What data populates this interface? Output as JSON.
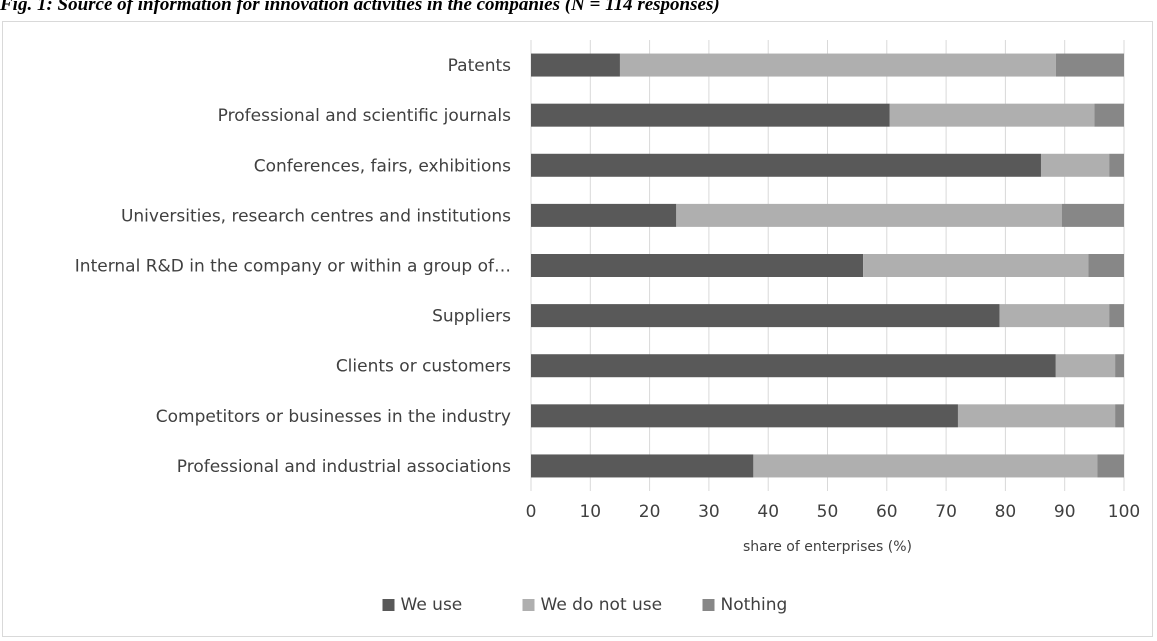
{
  "figure": {
    "title": "Fig. 1: Source of information for innovation activities in the companies (N = 114 responses)"
  },
  "chart_data": {
    "type": "bar",
    "orientation": "horizontal",
    "stacked": true,
    "categories": [
      "Patents",
      "Professional and scientific journals",
      "Conferences, fairs, exhibitions",
      "Universities, research centres and institutions",
      "Internal R&D in the company or within a group of…",
      "Suppliers",
      "Clients or customers",
      "Competitors or businesses in the industry",
      "Professional and industrial associations"
    ],
    "series": [
      {
        "name": "We use",
        "color": "#595959",
        "values": [
          15,
          60.5,
          86,
          24.5,
          56,
          79,
          88.5,
          72,
          37.5
        ]
      },
      {
        "name": "We do not use",
        "color": "#afafaf",
        "values": [
          73.5,
          34.5,
          11.5,
          65,
          38,
          18.5,
          10,
          26.5,
          58
        ]
      },
      {
        "name": "Nothing",
        "color": "#878787",
        "values": [
          11.5,
          5,
          2.5,
          10.5,
          6,
          2.5,
          1.5,
          1.5,
          4.5
        ]
      }
    ],
    "xlabel": "share of enterprises (%)",
    "xlim": [
      0,
      100
    ],
    "xticks": [
      0,
      10,
      20,
      30,
      40,
      50,
      60,
      70,
      80,
      90,
      100
    ],
    "grid": true,
    "legend_position": "bottom"
  }
}
